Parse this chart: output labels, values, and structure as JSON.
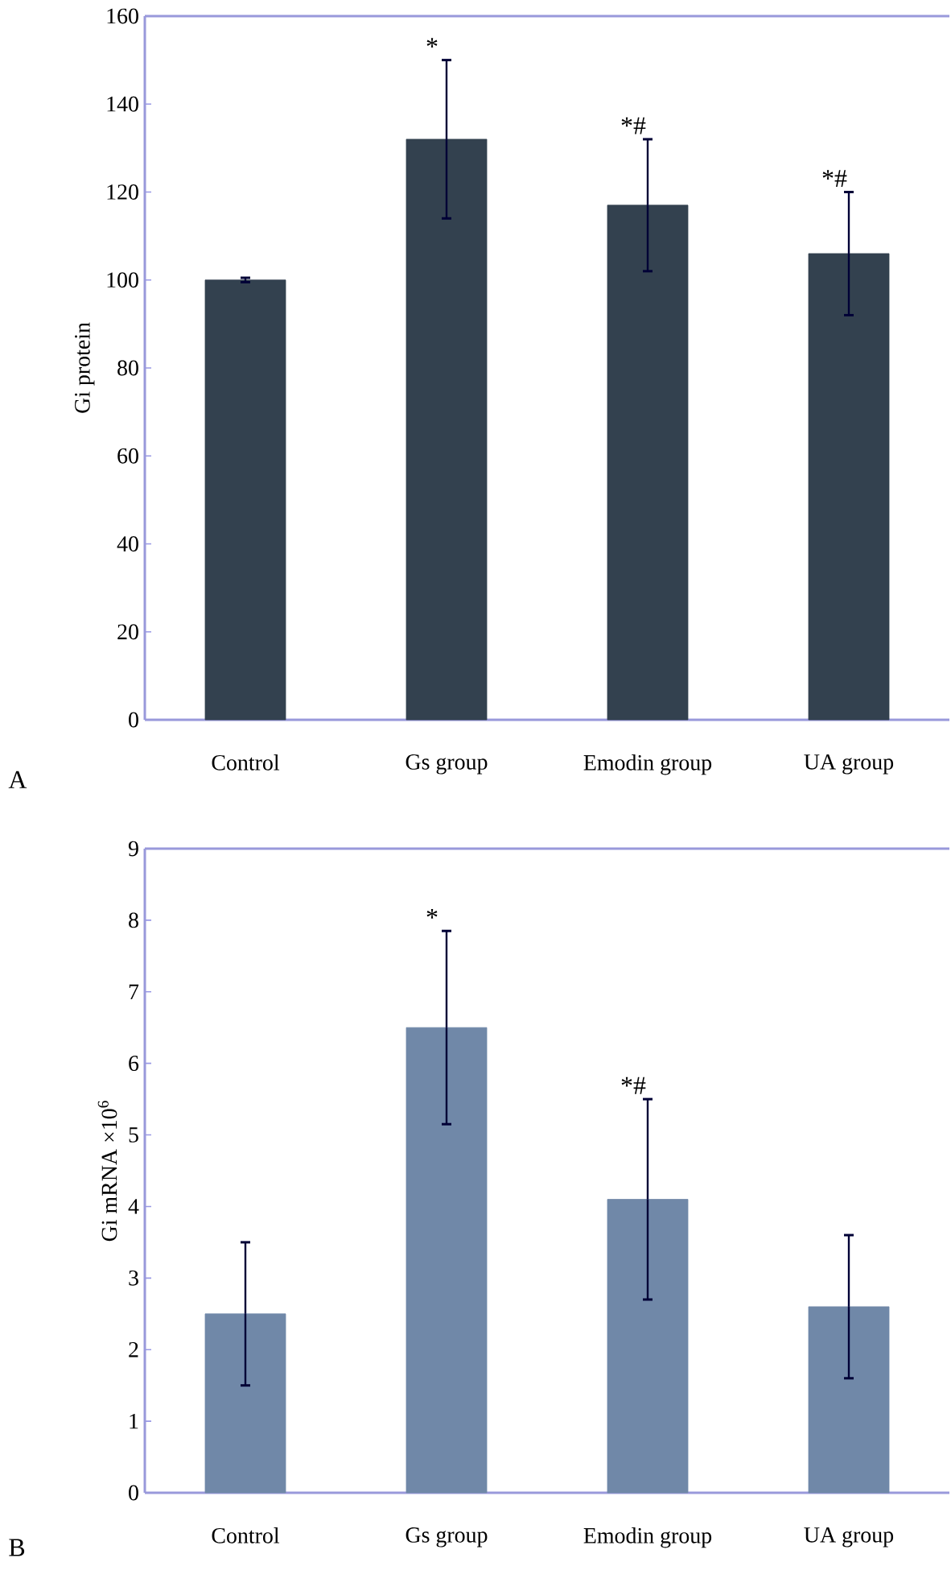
{
  "chart_data": [
    {
      "type": "bar",
      "ylabel": "Gi protein",
      "categories": [
        "Control",
        "Gs group",
        "Emodin group",
        "UA group"
      ],
      "values": [
        100,
        132,
        117,
        106
      ],
      "errors": [
        0.5,
        18,
        15,
        14
      ],
      "color": "#33414f",
      "ylim": [
        0,
        160
      ],
      "yticks": [
        0,
        20,
        40,
        60,
        80,
        100,
        120,
        140,
        160
      ],
      "annotations": [
        "A",
        {
          "text": "*",
          "x": "Gs group",
          "y": 150
        },
        {
          "text": "*#",
          "x": "Emodin group",
          "y": 132
        },
        {
          "text": "*#",
          "x": "UA group",
          "y": 120
        }
      ]
    },
    {
      "type": "bar",
      "ylabel": "Gi mRNA ×10$^{6}$",
      "categories": [
        "Control",
        "Gs group",
        "Emodin group",
        "UA group"
      ],
      "values": [
        2.5,
        6.5,
        4.1,
        2.6
      ],
      "errors": [
        1.0,
        1.35,
        1.4,
        1.0
      ],
      "color": "#7088a8",
      "ylim": [
        0,
        9
      ],
      "yticks": [
        0,
        1,
        2,
        3,
        4,
        5,
        6,
        7,
        8,
        9
      ],
      "annotations": [
        "B",
        {
          "text": "*",
          "x": "Gs group",
          "y": 7.85
        },
        {
          "text": "*#",
          "x": "Emodin group",
          "y": 5.5
        }
      ]
    }
  ]
}
